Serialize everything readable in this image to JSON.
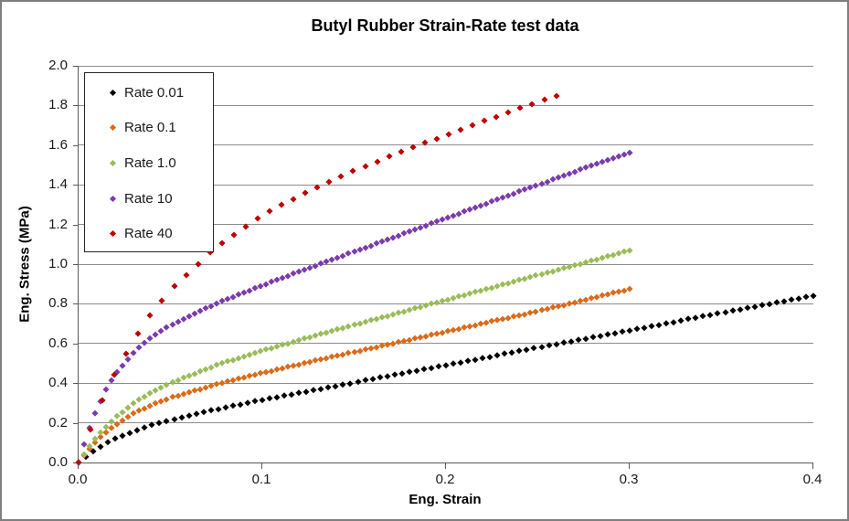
{
  "title": "Butyl Rubber Strain-Rate test data",
  "colors": {
    "background": "#FFFFFF",
    "outer_border": "#7F7F7F",
    "gridline": "#8C8C8C",
    "axis_line": "#595959",
    "text": "#1A1A1A",
    "legend_border": "#262626"
  },
  "chart_data": {
    "type": "scatter",
    "title": "Butyl Rubber Strain-Rate test data",
    "xlabel": "Eng. Strain",
    "ylabel": "Eng. Stress (MPa)",
    "xlim": [
      0,
      0.4
    ],
    "ylim": [
      0,
      2.0
    ],
    "grid": "horizontal",
    "legend_position": "inside-top-left",
    "x_tick_values": [
      0,
      0.1,
      0.2,
      0.3,
      0.4
    ],
    "x_tick_labels": [
      "0.0",
      "0.1",
      "0.2",
      "0.3",
      "0.4"
    ],
    "y_tick_values": [
      0,
      0.2,
      0.4,
      0.6,
      0.8,
      1.0,
      1.2,
      1.4,
      1.6,
      1.8,
      2.0
    ],
    "y_tick_labels": [
      "0.0",
      "0.2",
      "0.4",
      "0.6",
      "0.8",
      "1.0",
      "1.2",
      "1.4",
      "1.6",
      "1.8",
      "2.0"
    ],
    "series": [
      {
        "name": "Rate 0.01",
        "color": "#000000",
        "marker": "diamond",
        "marker_size": 5.4,
        "marker_step": 0.004,
        "points": [
          [
            0,
            0
          ],
          [
            0.005,
            0.037
          ],
          [
            0.01,
            0.069
          ],
          [
            0.015,
            0.095
          ],
          [
            0.02,
            0.119
          ],
          [
            0.03,
            0.157
          ],
          [
            0.04,
            0.187
          ],
          [
            0.05,
            0.213
          ],
          [
            0.075,
            0.267
          ],
          [
            0.1,
            0.314
          ],
          [
            0.125,
            0.358
          ],
          [
            0.15,
            0.402
          ],
          [
            0.175,
            0.446
          ],
          [
            0.2,
            0.49
          ],
          [
            0.225,
            0.534
          ],
          [
            0.25,
            0.578
          ],
          [
            0.275,
            0.621
          ],
          [
            0.3,
            0.665
          ],
          [
            0.325,
            0.709
          ],
          [
            0.35,
            0.753
          ],
          [
            0.375,
            0.796
          ],
          [
            0.4,
            0.84
          ]
        ]
      },
      {
        "name": "Rate 0.1",
        "color": "#DB6A1A",
        "marker": "diamond",
        "marker_size": 4.8,
        "marker_step": 0.003,
        "points": [
          [
            0,
            0
          ],
          [
            0.005,
            0.061
          ],
          [
            0.01,
            0.112
          ],
          [
            0.015,
            0.154
          ],
          [
            0.02,
            0.19
          ],
          [
            0.03,
            0.248
          ],
          [
            0.04,
            0.291
          ],
          [
            0.05,
            0.327
          ],
          [
            0.075,
            0.395
          ],
          [
            0.1,
            0.452
          ],
          [
            0.125,
            0.506
          ],
          [
            0.15,
            0.557
          ],
          [
            0.175,
            0.609
          ],
          [
            0.2,
            0.66
          ],
          [
            0.225,
            0.712
          ],
          [
            0.25,
            0.763
          ],
          [
            0.275,
            0.82
          ],
          [
            0.3,
            0.875
          ]
        ]
      },
      {
        "name": "Rate 1.0",
        "color": "#9BBB59",
        "marker": "diamond",
        "marker_size": 4.8,
        "marker_step": 0.003,
        "points": [
          [
            0,
            0
          ],
          [
            0.005,
            0.071
          ],
          [
            0.01,
            0.13
          ],
          [
            0.015,
            0.182
          ],
          [
            0.02,
            0.226
          ],
          [
            0.03,
            0.299
          ],
          [
            0.04,
            0.355
          ],
          [
            0.05,
            0.402
          ],
          [
            0.075,
            0.492
          ],
          [
            0.1,
            0.564
          ],
          [
            0.125,
            0.63
          ],
          [
            0.15,
            0.694
          ],
          [
            0.175,
            0.757
          ],
          [
            0.2,
            0.82
          ],
          [
            0.225,
            0.882
          ],
          [
            0.25,
            0.945
          ],
          [
            0.275,
            1.007
          ],
          [
            0.3,
            1.07
          ]
        ]
      },
      {
        "name": "Rate 10",
        "color": "#7A3BAD",
        "marker": "diamond",
        "marker_size": 4.8,
        "marker_step": 0.003,
        "points": [
          [
            0,
            0
          ],
          [
            0.005,
            0.153
          ],
          [
            0.01,
            0.272
          ],
          [
            0.015,
            0.367
          ],
          [
            0.02,
            0.443
          ],
          [
            0.03,
            0.555
          ],
          [
            0.04,
            0.634
          ],
          [
            0.05,
            0.693
          ],
          [
            0.075,
            0.803
          ],
          [
            0.1,
            0.894
          ],
          [
            0.125,
            0.979
          ],
          [
            0.15,
            1.064
          ],
          [
            0.175,
            1.148
          ],
          [
            0.2,
            1.232
          ],
          [
            0.225,
            1.316
          ],
          [
            0.25,
            1.4
          ],
          [
            0.275,
            1.484
          ],
          [
            0.3,
            1.56
          ]
        ]
      },
      {
        "name": "Rate 40",
        "color": "#C00000",
        "marker": "diamond",
        "marker_size": 5.0,
        "marker_step": 0.0065,
        "points": [
          [
            0,
            0
          ],
          [
            0.005,
            0.13
          ],
          [
            0.01,
            0.248
          ],
          [
            0.015,
            0.354
          ],
          [
            0.02,
            0.45
          ],
          [
            0.03,
            0.617
          ],
          [
            0.04,
            0.754
          ],
          [
            0.05,
            0.87
          ],
          [
            0.075,
            1.089
          ],
          [
            0.1,
            1.246
          ],
          [
            0.125,
            1.368
          ],
          [
            0.15,
            1.471
          ],
          [
            0.175,
            1.564
          ],
          [
            0.2,
            1.651
          ],
          [
            0.225,
            1.735
          ],
          [
            0.25,
            1.817
          ],
          [
            0.26,
            1.85
          ]
        ]
      }
    ]
  }
}
